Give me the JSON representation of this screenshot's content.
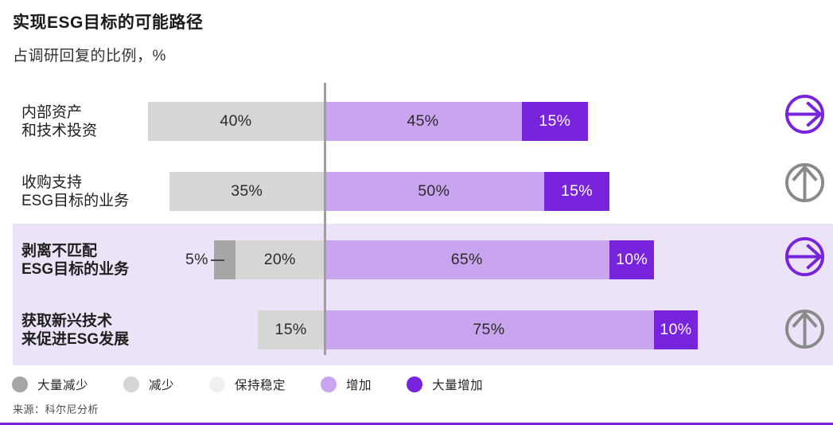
{
  "title": "实现ESG目标的可能路径",
  "subtitle": "占调研回复的比例，%",
  "source": "来源：科尔尼分析",
  "chart_data": {
    "type": "bar",
    "orientation": "horizontal",
    "stacked": true,
    "diverging": true,
    "unit": "%",
    "title": "实现ESG目标的可能路径",
    "subtitle": "占调研回复的比例，%",
    "categories": [
      "内部资产和技术投资",
      "收购支持ESG目标的业务",
      "剥离不匹配ESG目标的业务",
      "获取新兴技术来促进ESG发展"
    ],
    "legend": [
      {
        "key": "strong_decrease",
        "label": "大量减少",
        "color": "#a6a6a6"
      },
      {
        "key": "decrease",
        "label": "减少",
        "color": "#d6d6d6"
      },
      {
        "key": "stable",
        "label": "保持稳定",
        "color": "#f1f0ee"
      },
      {
        "key": "increase",
        "label": "增加",
        "color": "#c9a4ef"
      },
      {
        "key": "strong_increase",
        "label": "大量增加",
        "color": "#7823dc"
      }
    ],
    "colors": {
      "strong_decrease": "#a6a6a6",
      "decrease": "#d6d6d6",
      "stable": "#f1f0ee",
      "increase": "#c9a4ef",
      "strong_increase": "#7823dc",
      "highlight_bg": "#ece3f8",
      "axis": "#9e9e9e",
      "icon_gray": "#8a8a8a",
      "accent": "#7823dc"
    },
    "left_keys": [
      "strong_decrease",
      "decrease"
    ],
    "highlighted_rows": [
      2,
      3
    ],
    "rows": [
      {
        "label_lines": [
          "内部资产",
          "和技术投资"
        ],
        "bold": false,
        "icon": "right",
        "segments": [
          {
            "key": "decrease",
            "value": 40,
            "label": "40%"
          },
          {
            "key": "increase",
            "value": 45,
            "label": "45%"
          },
          {
            "key": "strong_increase",
            "value": 15,
            "label": "15%"
          }
        ]
      },
      {
        "label_lines": [
          "收购支持",
          "ESG目标的业务"
        ],
        "bold": false,
        "icon": "up",
        "segments": [
          {
            "key": "decrease",
            "value": 35,
            "label": "35%"
          },
          {
            "key": "increase",
            "value": 50,
            "label": "50%"
          },
          {
            "key": "strong_increase",
            "value": 15,
            "label": "15%"
          }
        ]
      },
      {
        "label_lines": [
          "剥离不匹配",
          "ESG目标的业务"
        ],
        "bold": true,
        "icon": "right",
        "segments": [
          {
            "key": "strong_decrease",
            "value": 5,
            "label": "5%",
            "label_outside": true
          },
          {
            "key": "decrease",
            "value": 20,
            "label": "20%"
          },
          {
            "key": "increase",
            "value": 65,
            "label": "65%"
          },
          {
            "key": "strong_increase",
            "value": 10,
            "label": "10%"
          }
        ]
      },
      {
        "label_lines": [
          "获取新兴技术",
          "来促进ESG发展"
        ],
        "bold": true,
        "icon": "up",
        "segments": [
          {
            "key": "decrease",
            "value": 15,
            "label": "15%"
          },
          {
            "key": "increase",
            "value": 75,
            "label": "75%"
          },
          {
            "key": "strong_increase",
            "value": 10,
            "label": "10%"
          }
        ]
      }
    ]
  }
}
